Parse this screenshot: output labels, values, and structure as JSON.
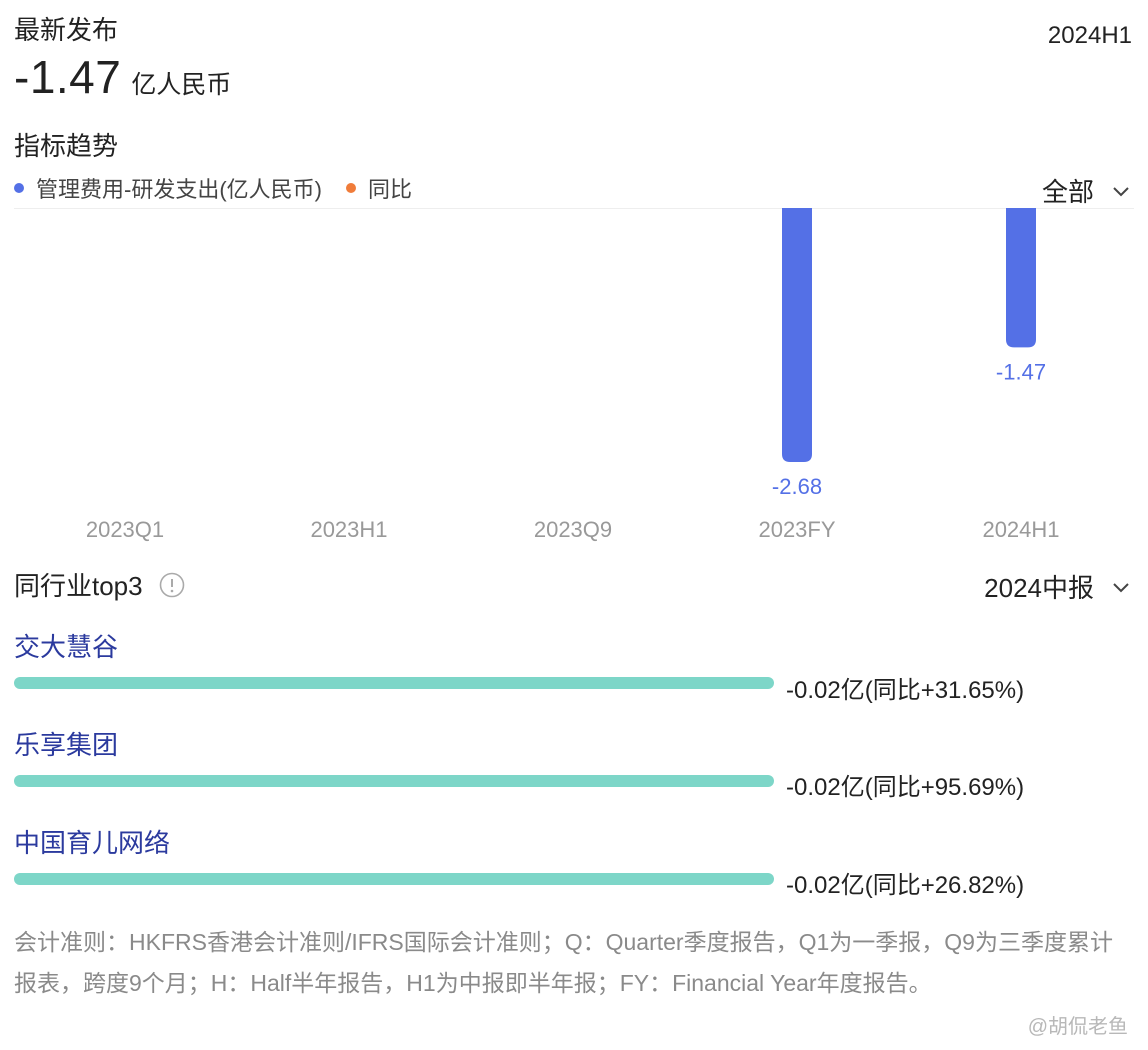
{
  "header": {
    "title": "最新发布",
    "period": "2024H1",
    "latest_value": "-1.47",
    "latest_unit": "亿人民币"
  },
  "trend": {
    "title": "指标趋势",
    "legend": [
      {
        "label": "管理费用-研发支出(亿人民币)",
        "color": "#5470e6"
      },
      {
        "label": "同比",
        "color": "#f07c3a"
      }
    ],
    "filter_label": "全部"
  },
  "chart_data": {
    "type": "bar",
    "categories": [
      "2023Q1",
      "2023H1",
      "2023Q9",
      "2023FY",
      "2024H1"
    ],
    "series": [
      {
        "name": "管理费用-研发支出(亿人民币)",
        "values": [
          null,
          null,
          null,
          -2.68,
          -1.47
        ],
        "labels": [
          "",
          "",
          "",
          "-2.68",
          "-1.47"
        ],
        "color": "#5470e6"
      }
    ],
    "ylim": [
      -2.68,
      0
    ]
  },
  "peers": {
    "title": "同行业top3",
    "filter_label": "2024中报",
    "items": [
      {
        "name": "交大慧谷",
        "value_text": "-0.02亿(同比+31.65%)",
        "share": 1.0
      },
      {
        "name": "乐享集团",
        "value_text": "-0.02亿(同比+95.69%)",
        "share": 1.0
      },
      {
        "name": "中国育儿网络",
        "value_text": "-0.02亿(同比+26.82%)",
        "share": 1.0
      }
    ],
    "bar_color": "#7dd6c8"
  },
  "footnote": "会计准则：HKFRS香港会计准则/IFRS国际会计准则；Q：Quarter季度报告，Q1为一季报，Q9为三季度累计报表，跨度9个月；H：Half半年报告，H1为中报即半年报；FY：Financial Year年度报告。",
  "watermark": "@胡侃老鱼"
}
